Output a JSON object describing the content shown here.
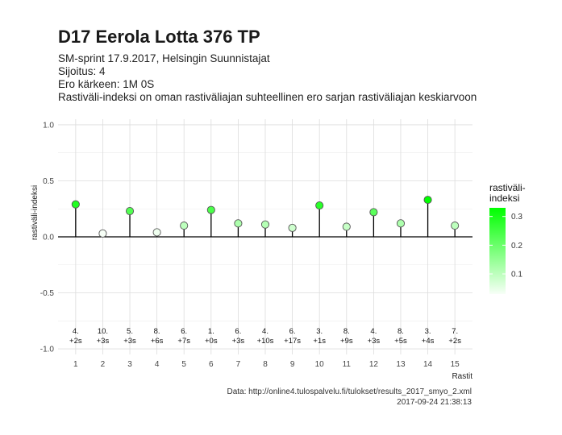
{
  "header": {
    "title": "D17 Eerola Lotta 376 TP",
    "subtitle_lines": [
      "SM-sprint 17.9.2017, Helsingin Suunnistajat",
      "Sijoitus: 4",
      "Ero kärkeen: 1M 0S",
      "Rastiväli-indeksi on oman rastiväliajan suhteellinen ero sarjan rastiväliajan keskiarvoon"
    ]
  },
  "caption": {
    "source": "Data: http://online4.tulospalvelu.fi/tulokset/results_2017_smyo_2.xml",
    "timestamp": "2017-09-24 21:38:13"
  },
  "chart_data": {
    "type": "scatter",
    "xlabel": "Rastit",
    "ylabel": "rastiväli-indeksi",
    "ylim": [
      -1.05,
      1.05
    ],
    "xlim": [
      0.35,
      15.65
    ],
    "yticks": [
      "1.0",
      "0.5",
      "0.0",
      "-0.5",
      "-1.0"
    ],
    "x": [
      1,
      2,
      3,
      4,
      5,
      6,
      7,
      8,
      9,
      10,
      11,
      12,
      13,
      14,
      15
    ],
    "values": [
      0.29,
      0.03,
      0.23,
      0.04,
      0.1,
      0.24,
      0.12,
      0.11,
      0.08,
      0.28,
      0.09,
      0.22,
      0.12,
      0.33,
      0.1
    ],
    "rank_labels": [
      "4.",
      "10.",
      "5.",
      "8.",
      "6.",
      "1.",
      "6.",
      "4.",
      "6.",
      "3.",
      "8.",
      "4.",
      "8.",
      "3.",
      "7."
    ],
    "diff_labels": [
      "+2s",
      "+3s",
      "+3s",
      "+6s",
      "+7s",
      "+0s",
      "+3s",
      "+10s",
      "+17s",
      "+1s",
      "+9s",
      "+3s",
      "+5s",
      "+4s",
      "+2s"
    ],
    "grid": true,
    "legend": {
      "title_lines": [
        "rastiväli-",
        "indeksi"
      ],
      "tick_values": [
        0.3,
        0.2,
        0.1
      ],
      "tick_labels": [
        "0.3",
        "0.2",
        "0.1"
      ],
      "range": [
        0.03,
        0.33
      ],
      "color_low": "#f7fff7",
      "color_high": "#00ff00",
      "placement": "right"
    }
  }
}
